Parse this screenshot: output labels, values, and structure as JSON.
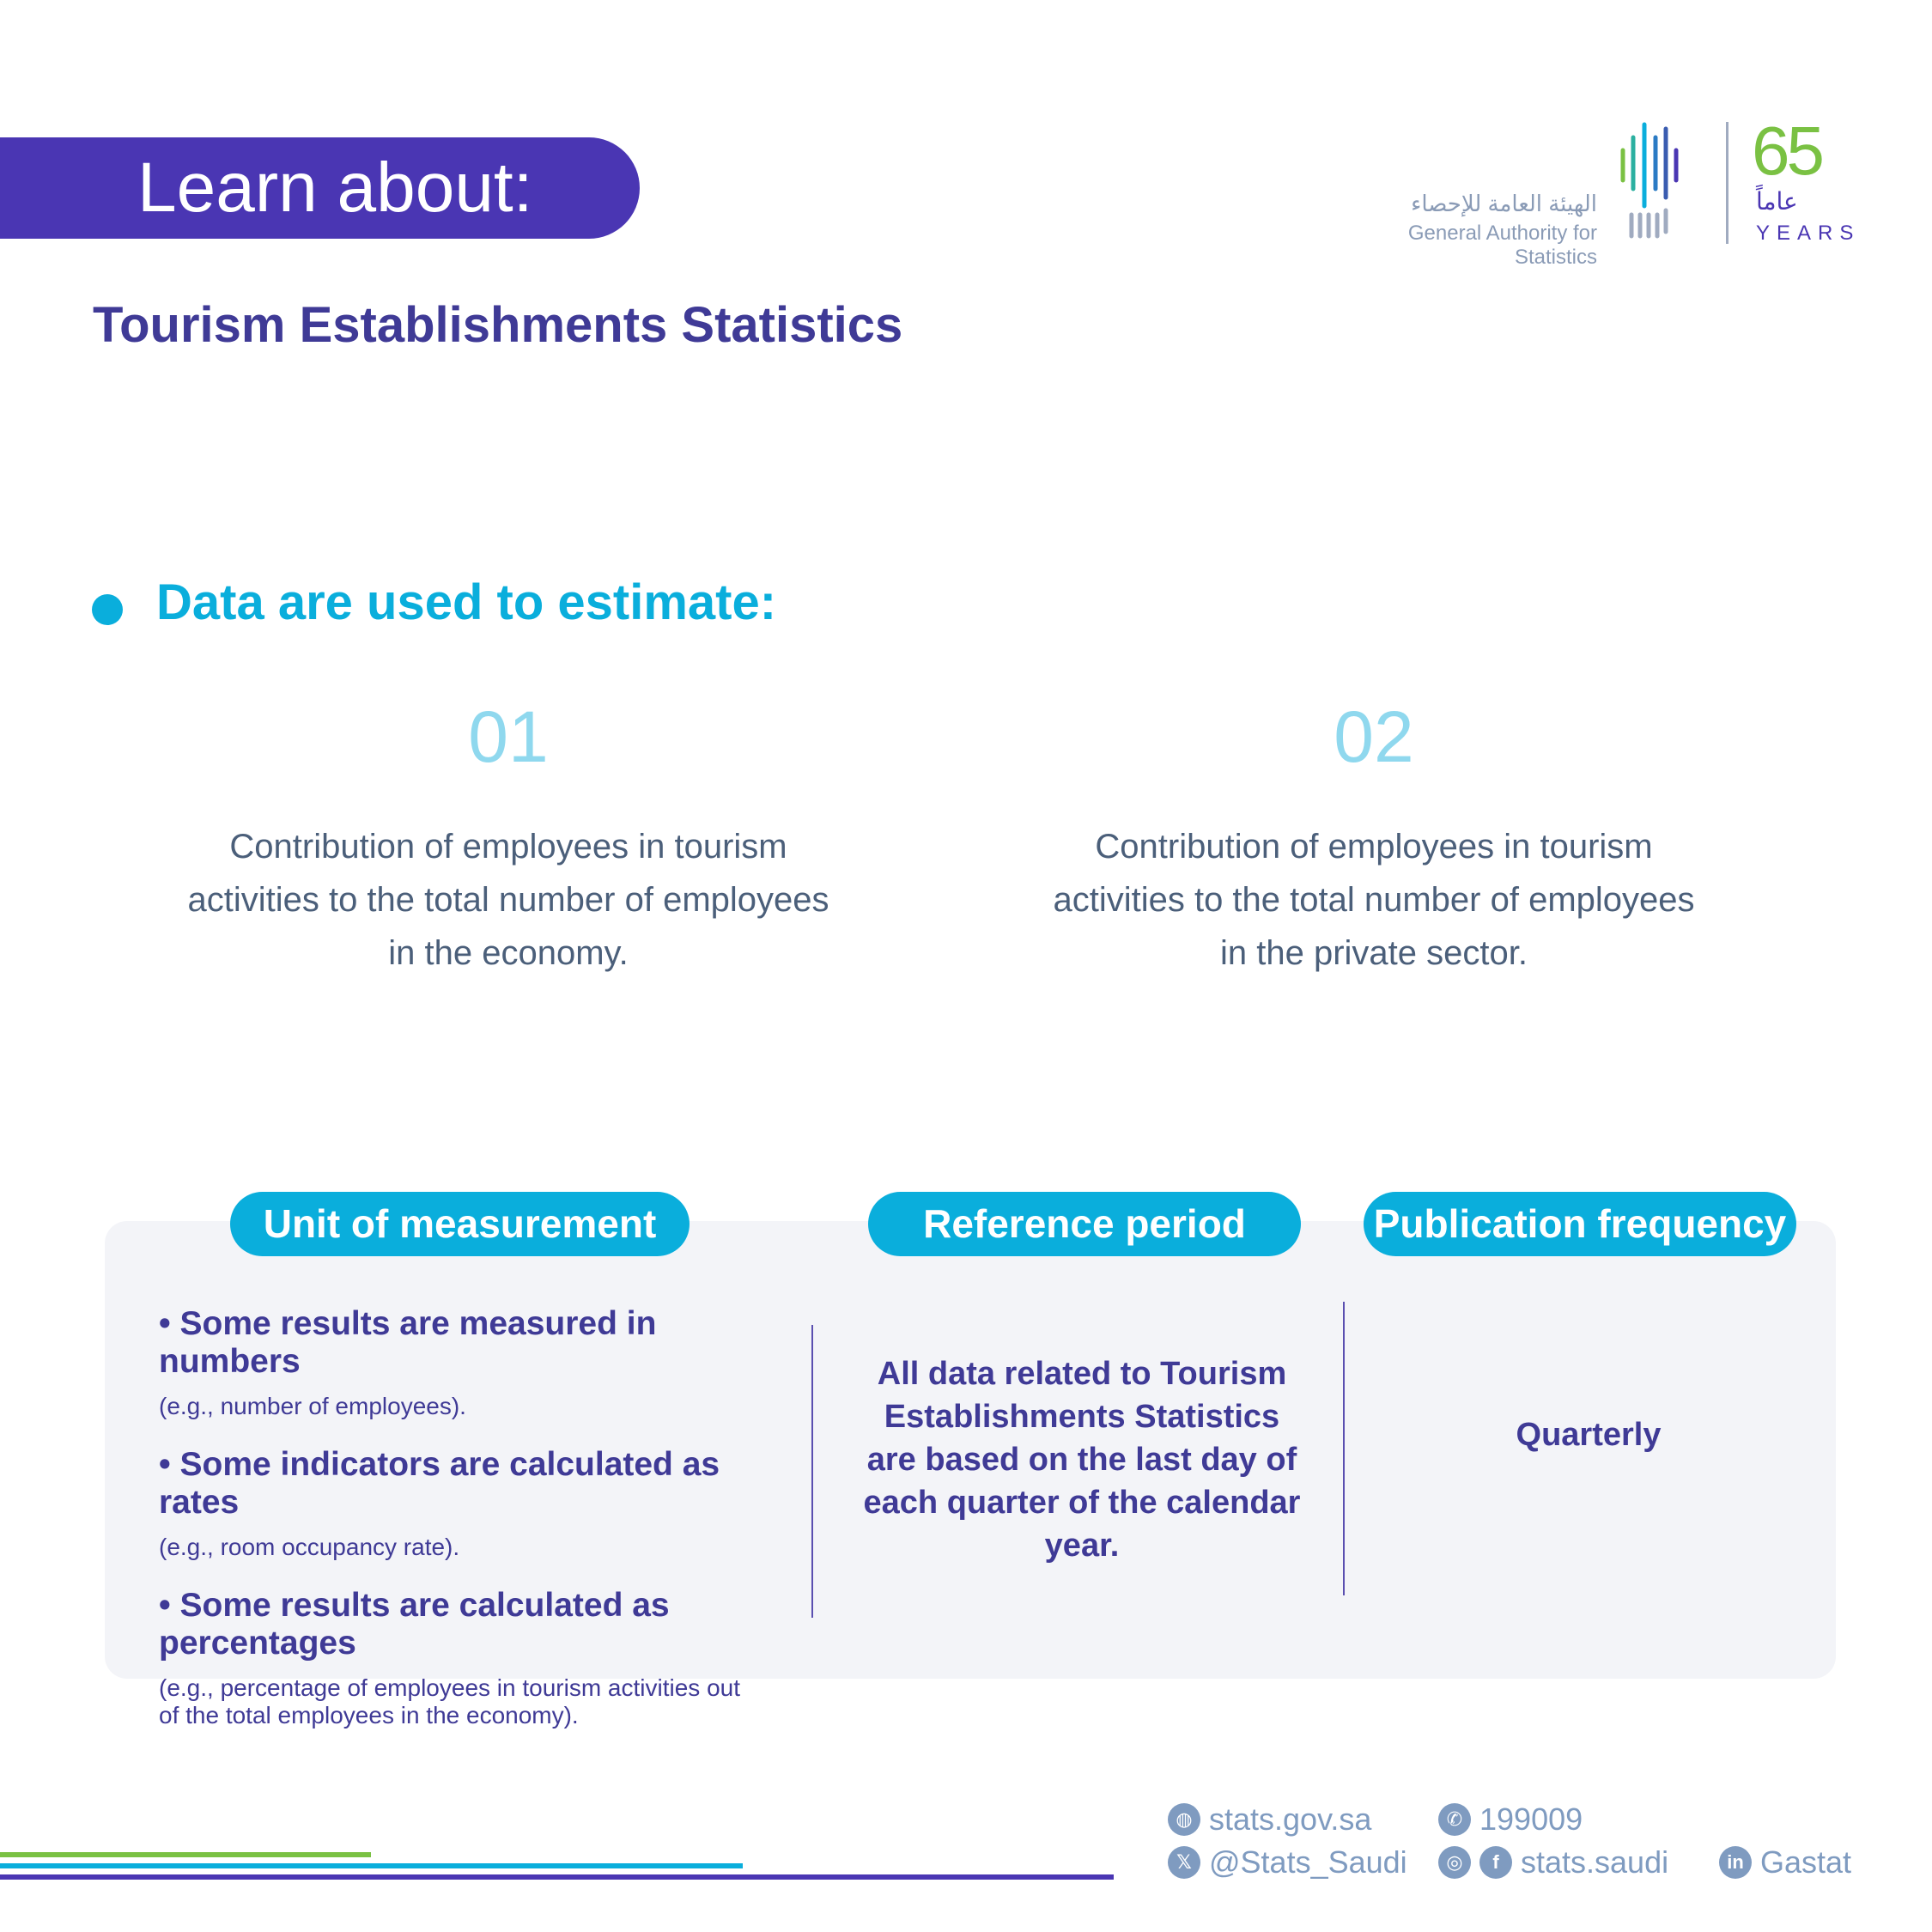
{
  "banner": {
    "label": "Learn about:"
  },
  "title": "Tourism Establishments Statistics",
  "logo": {
    "arabic": "الهيئة العامة للإحصاء",
    "english": "General Authority for Statistics",
    "anniv_number": "65",
    "anniv_arabic": "عاماً",
    "anniv_years": "YEARS"
  },
  "section": {
    "heading": "Data are used to estimate:",
    "items": [
      {
        "num": "01",
        "text": "Contribution of employees in tourism activities to the total number of employees in the economy."
      },
      {
        "num": "02",
        "text": "Contribution of employees in tourism activities to the total number of employees in the private sector."
      }
    ]
  },
  "info": {
    "unit": {
      "label": "Unit of measurement",
      "bullets": [
        {
          "text": "• Some results are measured in numbers",
          "example": "(e.g., number of employees)."
        },
        {
          "text": "• Some indicators are calculated as rates",
          "example": "(e.g., room occupancy rate)."
        },
        {
          "text": "• Some results are calculated as percentages",
          "example": "(e.g., percentage of employees in tourism activities out of the total employees in the economy)."
        }
      ]
    },
    "reference": {
      "label": "Reference period",
      "text": "All data related to Tourism Establishments Statistics are based on the last day of each quarter of the calendar year."
    },
    "frequency": {
      "label": "Publication frequency",
      "text": "Quarterly"
    }
  },
  "footer": {
    "website": "stats.gov.sa",
    "phone": "199009",
    "twitter": "@Stats_Saudi",
    "social": "stats.saudi",
    "linkedin": "Gastat"
  },
  "colors": {
    "purple": "#4a36b3",
    "cyan": "#0aaedc",
    "green": "#7ac143"
  }
}
